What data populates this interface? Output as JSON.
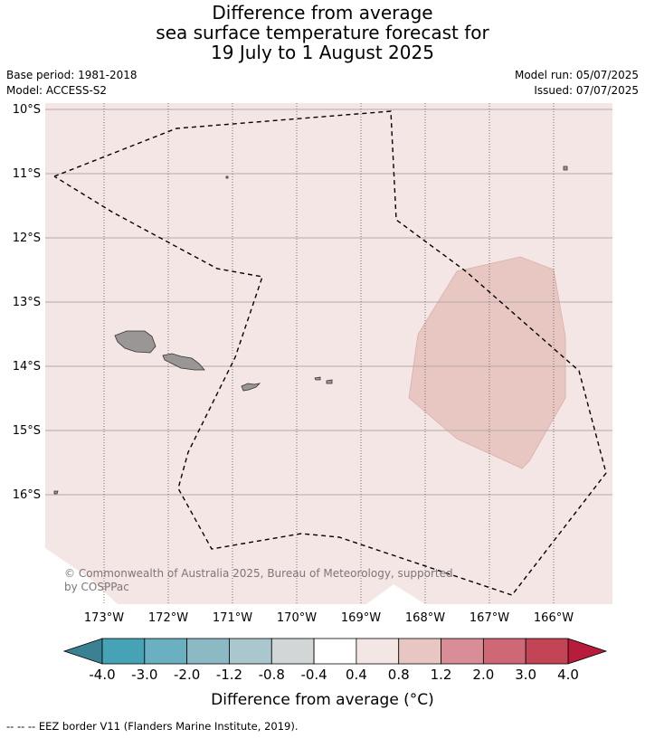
{
  "header": {
    "title_line1": "Difference from average",
    "title_line2": "sea surface temperature forecast for",
    "title_line3": "19 July to 1 August 2025",
    "base_period": "Base period: 1981-2018",
    "model": "Model: ACCESS-S2",
    "model_run": "Model run: 05/07/2025",
    "issued": "Issued: 07/07/2025"
  },
  "map": {
    "lat_labels": [
      "10°S",
      "11°S",
      "12°S",
      "13°S",
      "14°S",
      "15°S",
      "16°S"
    ],
    "lon_labels": [
      "173°W",
      "172°W",
      "171°W",
      "170°W",
      "169°W",
      "168°W",
      "167°W",
      "166°W"
    ],
    "copyright_line1": "© Commonwealth of Australia 2025, Bureau of Meteorology, supported",
    "copyright_line2": "by COSPPac",
    "background_color": "#f4e6e4",
    "anomaly_patch_color": "#e8c7c3",
    "land_color": "#9a9696"
  },
  "colorbar": {
    "tick_labels": [
      "-4.0",
      "-3.0",
      "-2.0",
      "-1.2",
      "-0.8",
      "-0.4",
      "0.4",
      "0.8",
      "1.2",
      "2.0",
      "3.0",
      "4.0"
    ],
    "colors": [
      "#45a3b5",
      "#6bb0c0",
      "#8bbac5",
      "#a9c7cc",
      "#d2d6d6",
      "#ffffff",
      "#f4e6e4",
      "#e8c7c3",
      "#d98d97",
      "#ce6876",
      "#c24455"
    ],
    "low_extend_color": "#3b8191",
    "high_extend_color": "#b71c3c",
    "label": "Difference from average (°C)"
  },
  "footer": {
    "legend_text": "-- -- -- EEZ border V11 (Flanders Marine Institute, 2019)."
  }
}
